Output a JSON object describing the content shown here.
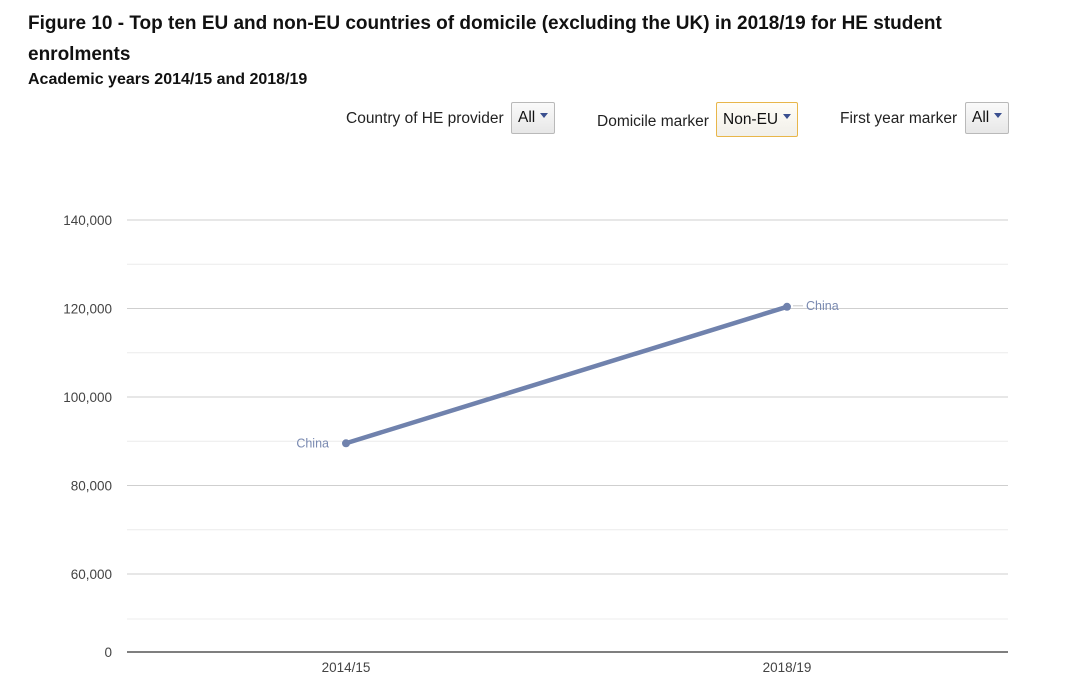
{
  "header": {
    "title": "Figure 10 - Top ten EU and non-EU countries of domicile (excluding the UK) in 2018/19 for HE student enrolments",
    "subtitle": "Academic years 2014/15 and 2018/19"
  },
  "filters": {
    "country": {
      "label": "Country of HE provider",
      "value": "All"
    },
    "domicile": {
      "label": "Domicile marker",
      "value": "Non-EU"
    },
    "first_year": {
      "label": "First year marker",
      "value": "All"
    }
  },
  "chart_data": {
    "type": "line",
    "title": "",
    "xlabel": "",
    "ylabel": "",
    "categories": [
      "2014/15",
      "2018/19"
    ],
    "y_ticks": [
      "0",
      "60,000",
      "80,000",
      "100,000",
      "120,000",
      "140,000"
    ],
    "y_tick_values": [
      0,
      60000,
      80000,
      100000,
      120000,
      140000
    ],
    "ylim": [
      0,
      140000
    ],
    "y_axis_break": "0 to 50,000 compressed",
    "grid": true,
    "series": [
      {
        "name": "China",
        "values": [
          89540,
          120385
        ],
        "color": "#7082ad"
      }
    ],
    "point_labels": [
      "China",
      "China"
    ],
    "colors": {
      "line": "#7082ad",
      "label": "#7a8ab1",
      "grid": "#cfcfcf",
      "minor_grid": "#ececec"
    }
  }
}
